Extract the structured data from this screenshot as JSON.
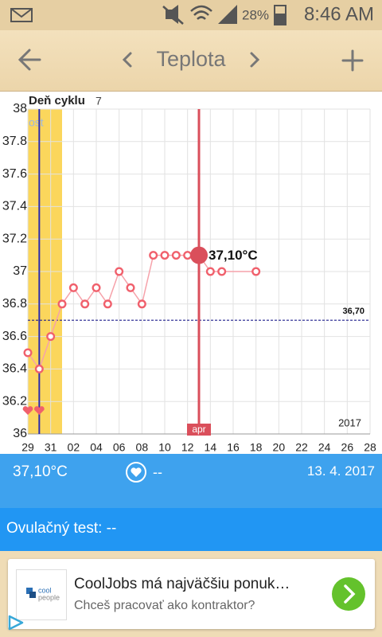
{
  "status_bar": {
    "battery": "28%",
    "time": "8:46 AM"
  },
  "app_bar": {
    "title": "Teplota"
  },
  "chart_data": {
    "type": "line",
    "cycle_day_label": "Deň cyklu",
    "cycle_day": 7,
    "period_label": "ost",
    "x": [
      0,
      1,
      2,
      3,
      4,
      5,
      6,
      7,
      8,
      9,
      10,
      11,
      12,
      13,
      14,
      15,
      16,
      17,
      20
    ],
    "series": [
      {
        "name": "Teplota",
        "color": "#f0606c",
        "line_color": "#f6a2aa",
        "values": [
          36.5,
          36.4,
          36.6,
          36.8,
          36.9,
          36.8,
          36.9,
          36.8,
          37.0,
          36.9,
          36.8,
          37.1,
          37.1,
          37.1,
          37.1,
          37.1,
          37.0,
          37.0,
          37.0
        ]
      }
    ],
    "xlim": [
      0,
      30
    ],
    "xticks": [
      {
        "value": 0,
        "label": "29"
      },
      {
        "value": 2,
        "label": "31"
      },
      {
        "value": 4,
        "label": "02"
      },
      {
        "value": 6,
        "label": "04"
      },
      {
        "value": 8,
        "label": "06"
      },
      {
        "value": 10,
        "label": "08"
      },
      {
        "value": 12,
        "label": "10"
      },
      {
        "value": 14,
        "label": "12"
      },
      {
        "value": 16,
        "label": "14"
      },
      {
        "value": 18,
        "label": "16"
      },
      {
        "value": 20,
        "label": "18"
      },
      {
        "value": 22,
        "label": "20"
      },
      {
        "value": 24,
        "label": "22"
      },
      {
        "value": 26,
        "label": "24"
      },
      {
        "value": 28,
        "label": "26"
      },
      {
        "value": 30,
        "label": "28"
      }
    ],
    "ylim": [
      36,
      38
    ],
    "yticks": [
      36,
      36.2,
      36.4,
      36.6,
      36.8,
      37,
      37.2,
      37.4,
      37.6,
      37.8,
      38
    ],
    "grid": true,
    "highlight_xrange": [
      0,
      3
    ],
    "highlight_color": "#fbd65c",
    "marker_line_x": 1,
    "marker_line_color": "#2b2bb0",
    "heart_x": [
      0,
      1
    ],
    "heart_color": "#f0606c",
    "cover_line": {
      "value": 36.7,
      "label": "36,70",
      "color": "#1f1f8c"
    },
    "selected": {
      "index": 15,
      "label": "37,10°C",
      "month_label": "apr",
      "color": "#da4f5b"
    },
    "year_label": "2017"
  },
  "info_bar": {
    "temperature": "37,10°C",
    "intercourse": "--",
    "date": "13. 4. 2017"
  },
  "ovulation_test": {
    "label": "Ovulačný test: --"
  },
  "ad": {
    "logo_text": [
      "cool",
      "people"
    ],
    "title": "CoolJobs má najväčšiu ponuk…",
    "subtitle": "Chceš pracovať ako kontraktor?"
  }
}
